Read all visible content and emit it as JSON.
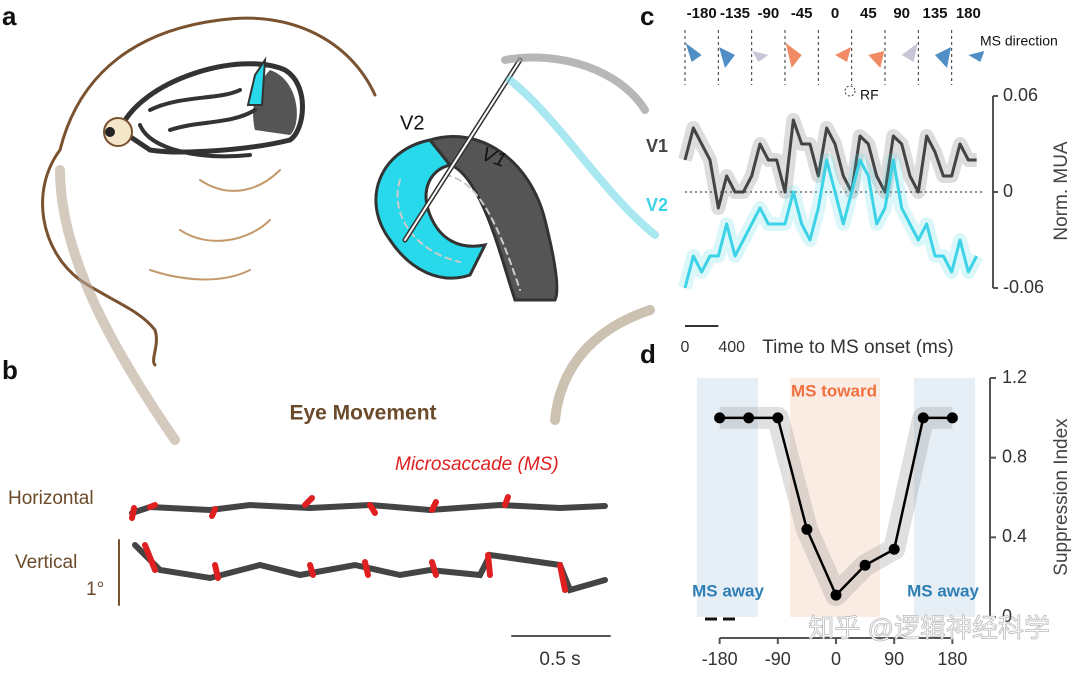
{
  "panel_labels": [
    "a",
    "b",
    "c",
    "d"
  ],
  "panel_a": {
    "area_labels": [
      "V2",
      "V1"
    ]
  },
  "panel_b": {
    "title": "Eye Movement",
    "legend": "Microsaccade (MS)",
    "rows": [
      "Horizontal",
      "Vertical"
    ],
    "amplitude_bar": "1°",
    "time_bar": "0.5 s"
  },
  "watermark": "知乎 @逻辑神经科学",
  "chart_data": [
    {
      "type": "line",
      "directions": [
        "-180",
        "-135",
        "-90",
        "-45",
        "0",
        "45",
        "90",
        "135",
        "180"
      ],
      "direction_label": "MS direction",
      "rf_label": "RF",
      "y_label": "Norm. MUA",
      "x_label": "Time to MS onset (ms)",
      "ylim": [
        -0.08,
        0.07
      ],
      "yticks": [
        0.06,
        0,
        -0.06
      ],
      "xlim": [
        0,
        3600
      ],
      "xticks": [
        0,
        400
      ],
      "x": [
        0,
        100,
        200,
        300,
        400,
        500,
        600,
        700,
        800,
        900,
        1000,
        1100,
        1200,
        1300,
        1400,
        1500,
        1600,
        1700,
        1800,
        1900,
        2000,
        2100,
        2200,
        2300,
        2400,
        2500,
        2600,
        2700,
        2800,
        2900,
        3000,
        3100,
        3200,
        3300,
        3400,
        3500
      ],
      "series": [
        {
          "name": "V1",
          "color": "#444444",
          "values": [
            0.02,
            0.04,
            0.03,
            0.02,
            -0.01,
            0.01,
            0.0,
            0.0,
            0.01,
            0.03,
            0.02,
            0.02,
            0.0,
            0.045,
            0.03,
            0.03,
            0.01,
            0.04,
            0.03,
            0.01,
            0.0,
            0.035,
            0.03,
            0.01,
            0.0,
            0.035,
            0.03,
            0.01,
            0.0,
            0.035,
            0.025,
            0.01,
            0.01,
            0.03,
            0.02,
            0.02
          ]
        },
        {
          "name": "V2",
          "color": "#3dd3e6",
          "values": [
            -0.06,
            -0.04,
            -0.05,
            -0.04,
            -0.04,
            -0.02,
            -0.04,
            -0.03,
            -0.02,
            -0.01,
            -0.02,
            -0.02,
            -0.02,
            0.0,
            -0.02,
            -0.03,
            -0.01,
            0.02,
            0.0,
            -0.02,
            0.0,
            0.02,
            0.01,
            -0.02,
            -0.01,
            0.02,
            -0.01,
            -0.02,
            -0.03,
            -0.02,
            -0.04,
            -0.04,
            -0.05,
            -0.03,
            -0.05,
            -0.04
          ]
        }
      ]
    },
    {
      "type": "line",
      "y_label": "Suppression Index",
      "annotations": [
        "MS toward",
        "MS away",
        "MS away"
      ],
      "x": [
        -180,
        -135,
        -90,
        -45,
        0,
        45,
        90,
        135,
        180
      ],
      "values": [
        1,
        1,
        1,
        0.44,
        0.11,
        0.26,
        0.34,
        1,
        1
      ],
      "color": "#000000",
      "xlim": [
        -215,
        215
      ],
      "xticks": [
        -180,
        -90,
        0,
        90,
        180
      ],
      "ylim": [
        0,
        1.2
      ],
      "yticks": [
        0,
        0.4,
        0.8,
        1.2
      ]
    }
  ]
}
